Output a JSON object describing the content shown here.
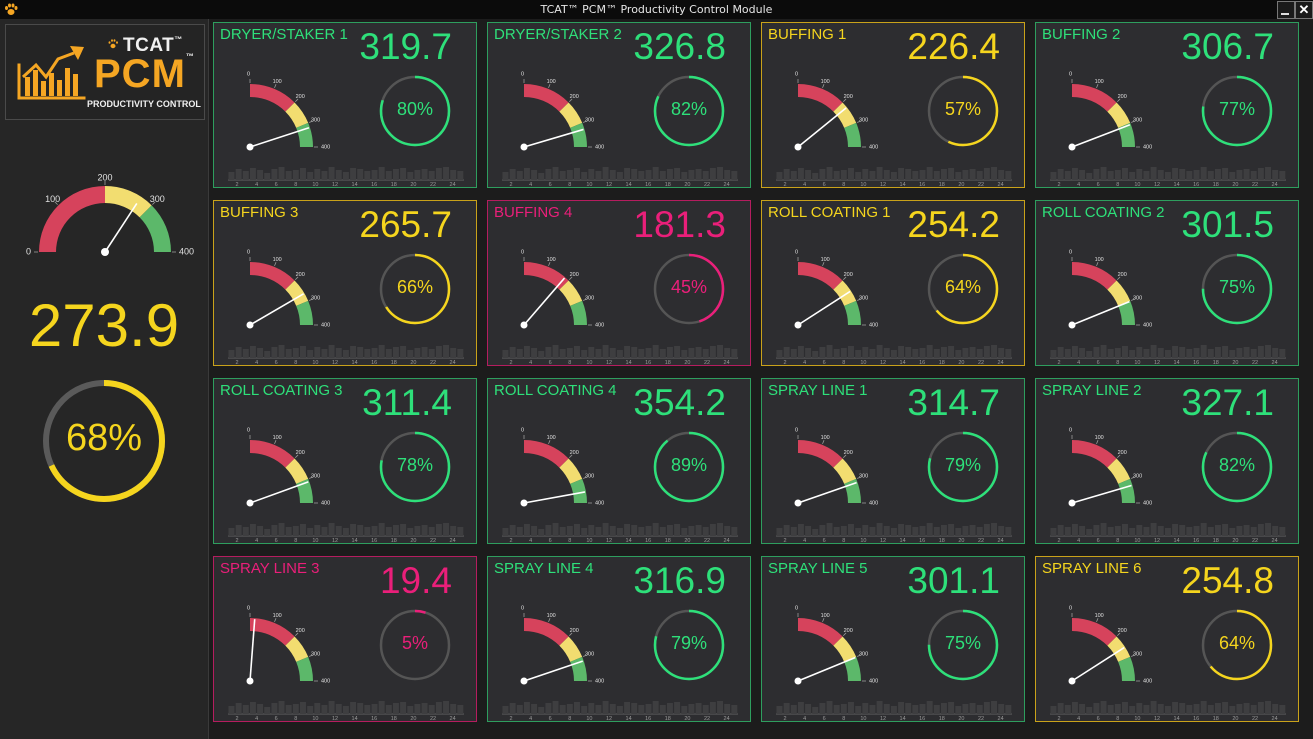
{
  "window": {
    "title": "TCAT™ PCM™ Productivity Control Module"
  },
  "colors": {
    "green": "#2ee07a",
    "yellow": "#f5d51e",
    "red": "#ea1f7a",
    "gauge_red": "#d6435c",
    "gauge_yellow": "#f2dd70",
    "gauge_green": "#5cb86a"
  },
  "logo": {
    "tcat": "TCAT",
    "tm": "™",
    "pcm": "PCM",
    "subtitle": "PRODUCTIVITY CONTROL"
  },
  "gauge_scale": [
    "0",
    "100",
    "200",
    "300",
    "400"
  ],
  "gauge_max": 400,
  "chart_axis": [
    "2",
    "4",
    "6",
    "8",
    "10",
    "12",
    "14",
    "16",
    "18",
    "20",
    "22",
    "24"
  ],
  "summary": {
    "value": "273.9",
    "percent": "68%",
    "gauge_value": 273.9,
    "ring_fraction": 0.68,
    "status": "yellow"
  },
  "stations": [
    {
      "name": "DRYER/STAKER 1",
      "value": "319.7",
      "percent": "80%",
      "gauge_value": 319.7,
      "ring_fraction": 0.8,
      "status": "green"
    },
    {
      "name": "DRYER/STAKER 2",
      "value": "326.8",
      "percent": "82%",
      "gauge_value": 326.8,
      "ring_fraction": 0.82,
      "status": "green"
    },
    {
      "name": "BUFFING 1",
      "value": "226.4",
      "percent": "57%",
      "gauge_value": 226.4,
      "ring_fraction": 0.57,
      "status": "yellow"
    },
    {
      "name": "BUFFING 2",
      "value": "306.7",
      "percent": "77%",
      "gauge_value": 306.7,
      "ring_fraction": 0.77,
      "status": "green"
    },
    {
      "name": "BUFFING 3",
      "value": "265.7",
      "percent": "66%",
      "gauge_value": 265.7,
      "ring_fraction": 0.66,
      "status": "yellow"
    },
    {
      "name": "BUFFING 4",
      "value": "181.3",
      "percent": "45%",
      "gauge_value": 181.3,
      "ring_fraction": 0.45,
      "status": "red"
    },
    {
      "name": "ROLL COATING 1",
      "value": "254.2",
      "percent": "64%",
      "gauge_value": 254.2,
      "ring_fraction": 0.64,
      "status": "yellow"
    },
    {
      "name": "ROLL COATING 2",
      "value": "301.5",
      "percent": "75%",
      "gauge_value": 301.5,
      "ring_fraction": 0.75,
      "status": "green"
    },
    {
      "name": "ROLL COATING 3",
      "value": "311.4",
      "percent": "78%",
      "gauge_value": 311.4,
      "ring_fraction": 0.78,
      "status": "green"
    },
    {
      "name": "ROLL COATING 4",
      "value": "354.2",
      "percent": "89%",
      "gauge_value": 354.2,
      "ring_fraction": 0.89,
      "status": "green"
    },
    {
      "name": "SPRAY LINE 1",
      "value": "314.7",
      "percent": "79%",
      "gauge_value": 314.7,
      "ring_fraction": 0.79,
      "status": "green"
    },
    {
      "name": "SPRAY LINE 2",
      "value": "327.1",
      "percent": "82%",
      "gauge_value": 327.1,
      "ring_fraction": 0.82,
      "status": "green"
    },
    {
      "name": "SPRAY LINE 3",
      "value": "19.4",
      "percent": "5%",
      "gauge_value": 19.4,
      "ring_fraction": 0.05,
      "status": "red"
    },
    {
      "name": "SPRAY LINE 4",
      "value": "316.9",
      "percent": "79%",
      "gauge_value": 316.9,
      "ring_fraction": 0.79,
      "status": "green"
    },
    {
      "name": "SPRAY LINE 5",
      "value": "301.1",
      "percent": "75%",
      "gauge_value": 301.1,
      "ring_fraction": 0.75,
      "status": "green"
    },
    {
      "name": "SPRAY LINE 6",
      "value": "254.8",
      "percent": "64%",
      "gauge_value": 254.8,
      "ring_fraction": 0.64,
      "status": "yellow"
    }
  ]
}
